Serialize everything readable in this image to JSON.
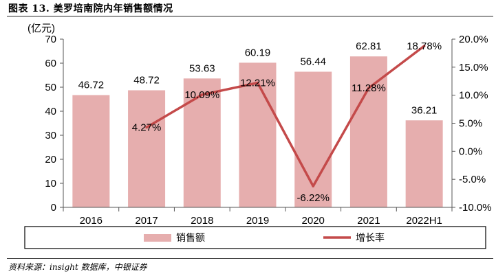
{
  "figure": {
    "title": "图表 13. 美罗培南院内年销售额情况",
    "source": "资料来源：insight 数据库，中银证券"
  },
  "chart_data": {
    "type": "bar",
    "categories": [
      "2016",
      "2017",
      "2018",
      "2019",
      "2020",
      "2021",
      "2022H1"
    ],
    "y_unit_label": "(亿元)",
    "ylim": [
      0,
      70
    ],
    "yticks": [
      0,
      10,
      20,
      30,
      40,
      50,
      60,
      70
    ],
    "y2lim": [
      -10,
      20
    ],
    "y2ticks": [
      "-10.0%",
      "-5.0%",
      "0.0%",
      "5.0%",
      "10.0%",
      "15.0%",
      "20.0%"
    ],
    "y2tick_values": [
      -10,
      -5,
      0,
      5,
      10,
      15,
      20
    ],
    "series": [
      {
        "name": "销售额",
        "kind": "bar",
        "axis": "left",
        "color": "#e6aeae",
        "values": [
          46.72,
          48.72,
          53.63,
          60.19,
          56.44,
          62.81,
          36.21
        ],
        "labels": [
          "46.72",
          "48.72",
          "53.63",
          "60.19",
          "56.44",
          "62.81",
          "36.21"
        ]
      },
      {
        "name": "增长率",
        "kind": "line",
        "axis": "right",
        "color": "#c44a4a",
        "values": [
          null,
          4.27,
          10.09,
          12.21,
          -6.22,
          11.28,
          18.78
        ],
        "labels": [
          "",
          "4.27%",
          "10.09%",
          "12.21%",
          "-6.22%",
          "11.28%",
          "18.78%"
        ]
      }
    ],
    "legend_position": "bottom"
  }
}
